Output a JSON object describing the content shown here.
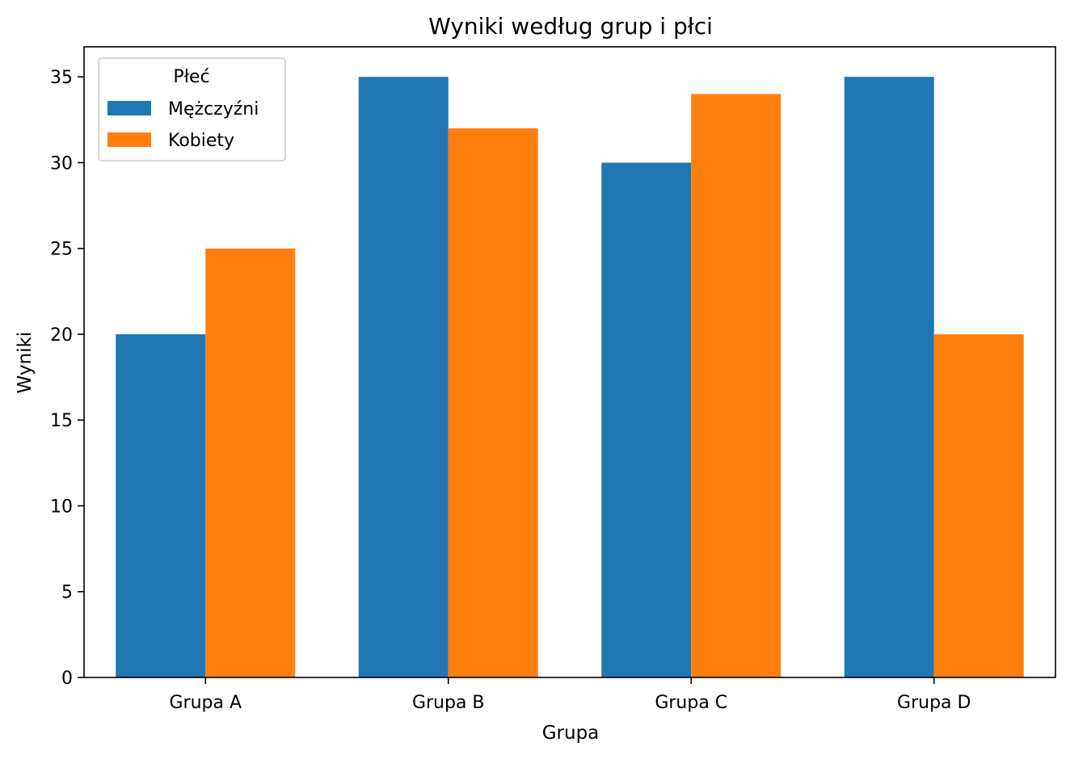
{
  "chart_data": {
    "type": "bar",
    "title": "Wyniki według grup i płci",
    "xlabel": "Grupa",
    "ylabel": "Wyniki",
    "categories": [
      "Grupa A",
      "Grupa B",
      "Grupa C",
      "Grupa D"
    ],
    "series": [
      {
        "name": "Mężczyźni",
        "values": [
          20,
          35,
          30,
          35
        ],
        "color": "#1f77b4"
      },
      {
        "name": "Kobiety",
        "values": [
          25,
          32,
          34,
          20
        ],
        "color": "#ff7f0e"
      }
    ],
    "ylim": [
      0,
      36.75
    ],
    "yticks": [
      0,
      5,
      10,
      15,
      20,
      25,
      30,
      35
    ],
    "grid": false,
    "legend": {
      "title": "Płeć",
      "position": "top-left"
    }
  }
}
